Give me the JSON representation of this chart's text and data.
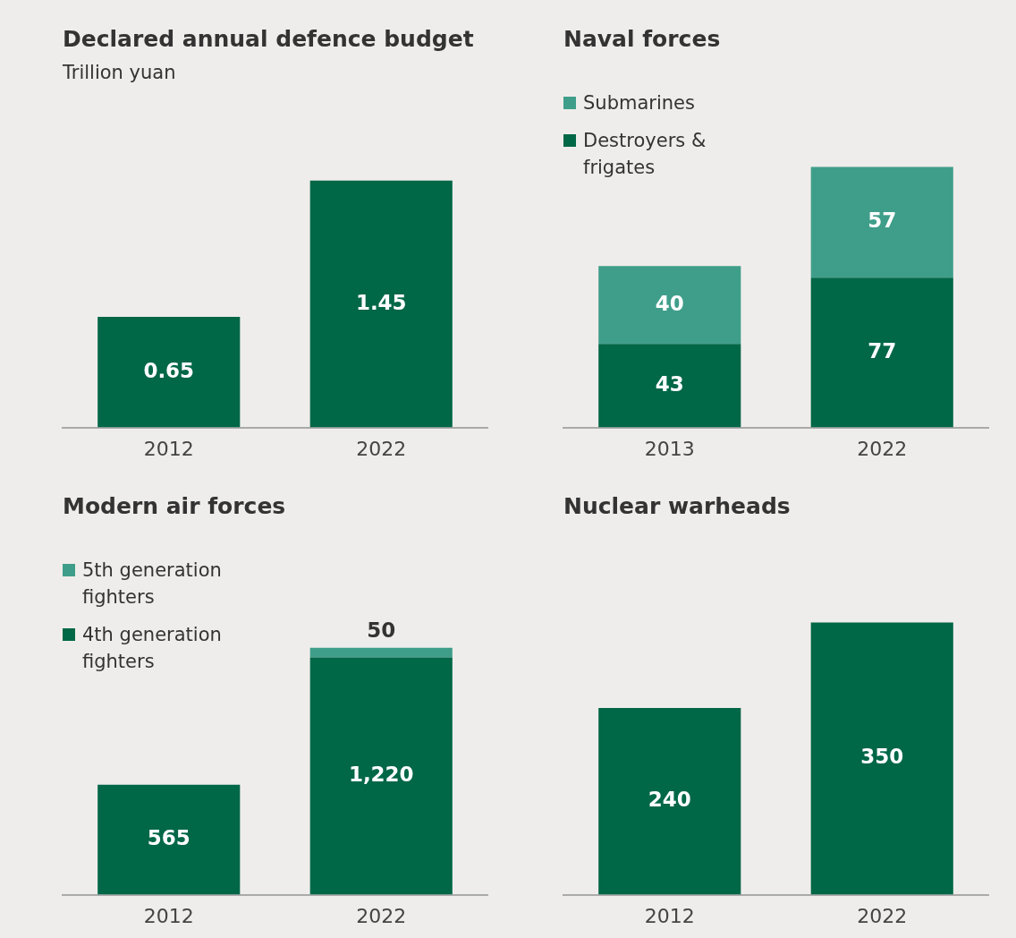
{
  "chart_data": [
    {
      "type": "bar",
      "title": "Declared annual defence budget",
      "subtitle": "Trillion yuan",
      "categories": [
        "2012",
        "2022"
      ],
      "series": [
        {
          "color": "#006747",
          "values": [
            0.65,
            1.45
          ]
        }
      ],
      "tick_labels": "x",
      "grid": false,
      "legend": false,
      "data_labels": true
    },
    {
      "type": "bar",
      "title": "Naval forces",
      "categories": [
        "2013",
        "2022"
      ],
      "stacked": true,
      "series": [
        {
          "name": "Destroyers & frigates",
          "color": "#006747",
          "values": [
            43,
            77
          ]
        },
        {
          "name": "Submarines",
          "color": "#3f9e8a",
          "values": [
            40,
            57
          ]
        }
      ],
      "tick_labels": "x",
      "grid": false,
      "legend": "top left",
      "data_labels": true
    },
    {
      "type": "bar",
      "title": "Modern air forces",
      "categories": [
        "2012",
        "2022"
      ],
      "stacked": true,
      "series": [
        {
          "name": "4th generation fighters",
          "color": "#006747",
          "values": [
            565,
            1220
          ],
          "value_labels": [
            "565",
            "1,220"
          ]
        },
        {
          "name": "5th generation fighters",
          "color": "#3f9e8a",
          "values": [
            null,
            50
          ],
          "value_labels": [
            null,
            "50"
          ]
        }
      ],
      "tick_labels": "x",
      "grid": false,
      "legend": "top left"
    },
    {
      "type": "bar",
      "title": "Nuclear warheads",
      "categories": [
        "2012",
        "2022"
      ],
      "series": [
        {
          "color": "#006747",
          "values": [
            240,
            350
          ]
        }
      ],
      "tick_labels": "x",
      "grid": false,
      "legend": false,
      "data_labels": true
    }
  ]
}
